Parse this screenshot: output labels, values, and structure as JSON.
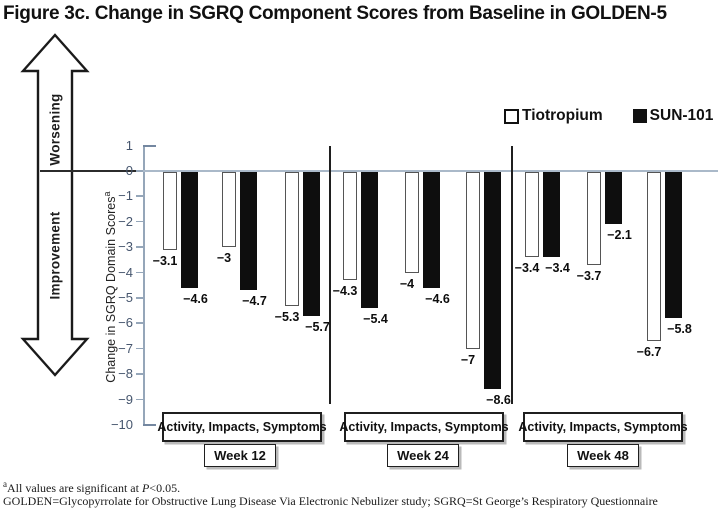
{
  "title": "Figure 3c. Change in SGRQ Component Scores from Baseline in GOLDEN-5",
  "arrow": {
    "worsening": "Worsening",
    "improvement": "Improvement"
  },
  "y_axis": {
    "label": "Change in SGRQ Domain Scores",
    "superscript": "a",
    "ticks": [
      1,
      0,
      -1,
      -2,
      -3,
      -4,
      -5,
      -6,
      -7,
      -8,
      -9,
      -10
    ]
  },
  "legend": {
    "tiotropium": "Tiotropium",
    "sun101": "SUN-101"
  },
  "chart_data": {
    "type": "bar",
    "title": "Change in SGRQ Component Scores from Baseline in GOLDEN-5",
    "ylabel": "Change in SGRQ Domain Scores",
    "ylim": [
      -10,
      1
    ],
    "grid": false,
    "legend_position": "top-right",
    "series_names": [
      "Tiotropium",
      "SUN-101"
    ],
    "groups": [
      {
        "week_label": "Week 12",
        "domains_label": "Activity, Impacts, Symptoms",
        "categories": [
          "Activity",
          "Impacts",
          "Symptoms"
        ],
        "series": [
          {
            "name": "Tiotropium",
            "values": [
              -3.1,
              -3,
              -5.3
            ]
          },
          {
            "name": "SUN-101",
            "values": [
              -4.6,
              -4.7,
              -5.7
            ]
          }
        ]
      },
      {
        "week_label": "Week 24",
        "domains_label": "Activity, Impacts, Symptoms",
        "categories": [
          "Activity",
          "Impacts",
          "Symptoms"
        ],
        "series": [
          {
            "name": "Tiotropium",
            "values": [
              -4.3,
              -4,
              -7
            ]
          },
          {
            "name": "SUN-101",
            "values": [
              -5.4,
              -4.6,
              -8.6
            ]
          }
        ]
      },
      {
        "week_label": "Week 48",
        "domains_label": "Activity, Impacts, Symptoms",
        "categories": [
          "Activity",
          "Impacts",
          "Symptoms"
        ],
        "series": [
          {
            "name": "Tiotropium",
            "values": [
              -3.4,
              -3.7,
              -6.7
            ]
          },
          {
            "name": "SUN-101",
            "values": [
              -3.4,
              -2.1,
              -5.8
            ]
          }
        ]
      }
    ]
  },
  "footnotes": {
    "marker": "a",
    "line1": "All values are significant at ",
    "p": "P",
    "line1_end": "<0.05.",
    "line2": "GOLDEN=Glycopyrrolate for Obstructive Lung Disease Via Electronic Nebulizer study; SGRQ=St George’s Respiratory Questionnaire"
  },
  "colors": {
    "axis": "#95a6b9",
    "tick_label": "#46566e",
    "sun101_bar": "#0e0e0e",
    "tiotropium_border": "#555555",
    "zero_line": "#aab9c9"
  }
}
